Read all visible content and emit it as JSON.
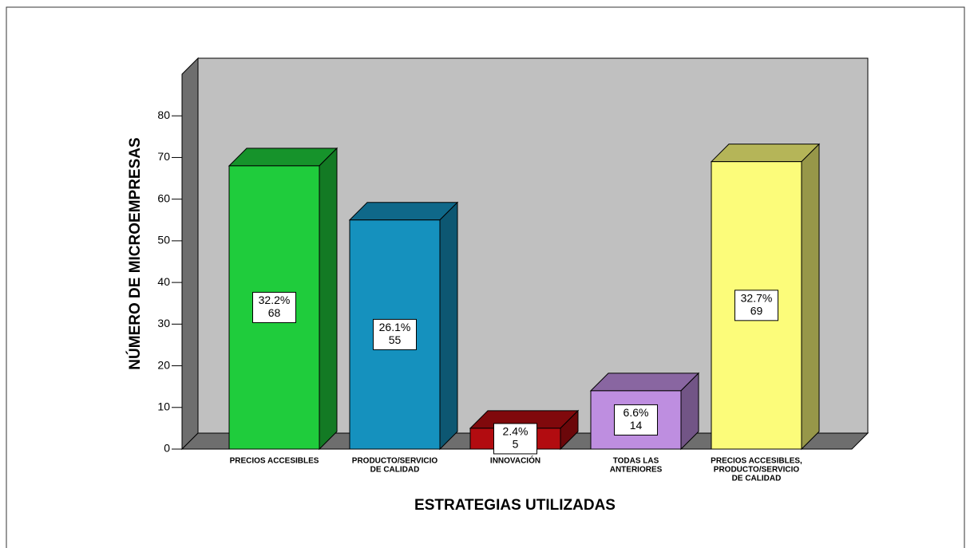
{
  "chart_data": {
    "type": "bar3d",
    "x_label": "ESTRATEGIAS UTILIZADAS",
    "y_label": "NÚMERO DE MICROEMPRESAS",
    "categories": [
      [
        "PRECIOS ACCESIBLES"
      ],
      [
        "PRODUCTO/SERVICIO",
        "DE CALIDAD"
      ],
      [
        "INNOVACIÓN"
      ],
      [
        "TODAS LAS",
        "ANTERIORES"
      ],
      [
        "PRECIOS ACCESIBLES,",
        "PRODUCTO/SERVICIO",
        "DE CALIDAD"
      ]
    ],
    "values": [
      68,
      55,
      5,
      14,
      69
    ],
    "percent_labels": [
      "32.2%",
      "26.1%",
      "2.4%",
      "6.6%",
      "32.7%"
    ],
    "colors": [
      "#1fcc3c",
      "#1591be",
      "#b20c10",
      "#be8ee0",
      "#fcfc7a"
    ],
    "ylim": [
      0,
      90
    ],
    "yticks": [
      0,
      10,
      20,
      30,
      40,
      50,
      60,
      70,
      80
    ]
  }
}
